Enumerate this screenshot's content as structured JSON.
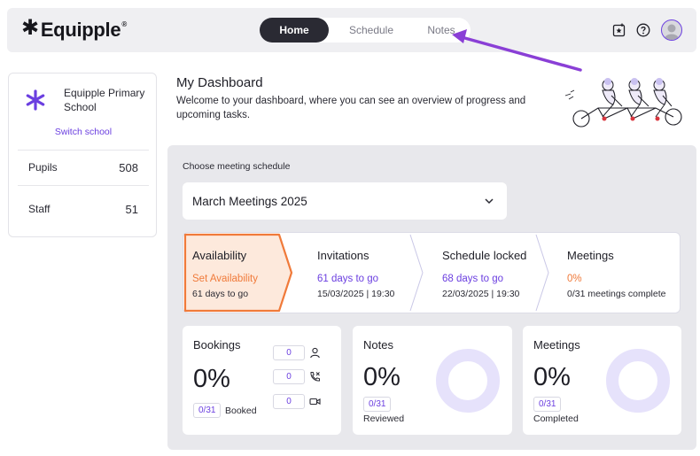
{
  "app": {
    "logo_text": "Equipple",
    "logo_mark": "✱",
    "logo_registered": "®"
  },
  "nav": {
    "tabs": [
      {
        "label": "Home",
        "active": true
      },
      {
        "label": "Schedule",
        "active": false
      },
      {
        "label": "Notes",
        "active": false
      }
    ]
  },
  "header_icons": [
    "star-badge-icon",
    "help-icon",
    "user-avatar"
  ],
  "school": {
    "name": "Equipple Primary School",
    "switch_label": "Switch school",
    "stats": [
      {
        "label": "Pupils",
        "value": "508"
      },
      {
        "label": "Staff",
        "value": "51"
      }
    ]
  },
  "dashboard": {
    "title": "My Dashboard",
    "subtitle": "Welcome to your dashboard, where you can see an overview of progress and upcoming tasks."
  },
  "schedule": {
    "choose_label": "Choose meeting schedule",
    "selected": "March Meetings 2025"
  },
  "steps": [
    {
      "title": "Availability",
      "status": "Set Availability",
      "meta": "61 days to go",
      "active": true
    },
    {
      "title": "Invitations",
      "status": "61 days to go",
      "meta": "15/03/2025 | 19:30",
      "active": false
    },
    {
      "title": "Schedule locked",
      "status": "68 days to go",
      "meta": "22/03/2025 | 19:30",
      "active": false
    },
    {
      "title": "Meetings",
      "status": "0%",
      "meta": "0/31 meetings complete",
      "active": false
    }
  ],
  "cards": {
    "bookings": {
      "title": "Bookings",
      "percent": "0%",
      "badge": "0/31",
      "badge_label": "Booked",
      "counts": [
        {
          "value": "0",
          "icon": "person-icon"
        },
        {
          "value": "0",
          "icon": "phone-icon"
        },
        {
          "value": "0",
          "icon": "video-icon"
        }
      ]
    },
    "notes": {
      "title": "Notes",
      "percent": "0%",
      "badge": "0/31",
      "badge_label": "Reviewed",
      "progress": 0
    },
    "meetings": {
      "title": "Meetings",
      "percent": "0%",
      "badge": "0/31",
      "badge_label": "Completed",
      "progress": 0
    }
  },
  "colors": {
    "accent": "#6b3fe0",
    "orange": "#f07a3a",
    "dark": "#2a2a33",
    "panel": "#e8e8ec",
    "ring": "#e6e2fb"
  }
}
